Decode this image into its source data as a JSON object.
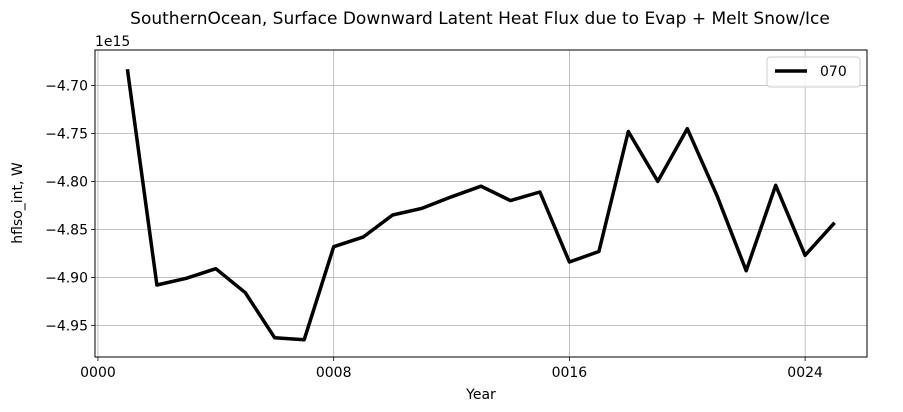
{
  "chart_data": {
    "type": "line",
    "title": "SouthernOcean, Surface Downward Latent Heat Flux due to Evap + Melt Snow/Ice",
    "xlabel": "Year",
    "ylabel": "hflso_int, W",
    "offset_label": "1e15",
    "y_multiplier": 1000000000000000.0,
    "xlim": [
      -0.1,
      26.1
    ],
    "ylim": [
      -4.983,
      -4.663
    ],
    "x_ticks": [
      0,
      8,
      16,
      24
    ],
    "x_tick_labels": [
      "0000",
      "0008",
      "0016",
      "0024"
    ],
    "y_ticks": [
      -4.7,
      -4.75,
      -4.8,
      -4.85,
      -4.9,
      -4.95
    ],
    "y_tick_labels": [
      "−4.70",
      "−4.75",
      "−4.80",
      "−4.85",
      "−4.90",
      "−4.95"
    ],
    "grid": true,
    "legend_position": "upper right",
    "series": [
      {
        "name": "070",
        "color": "#000000",
        "x": [
          1,
          2,
          3,
          4,
          5,
          6,
          7,
          8,
          9,
          10,
          11,
          12,
          13,
          14,
          15,
          16,
          17,
          18,
          19,
          20,
          21,
          22,
          23,
          24,
          25
        ],
        "y": [
          -4.683,
          -4.908,
          -4.901,
          -4.891,
          -4.916,
          -4.963,
          -4.965,
          -4.868,
          -4.858,
          -4.835,
          -4.828,
          -4.816,
          -4.805,
          -4.82,
          -4.811,
          -4.884,
          -4.873,
          -4.748,
          -4.8,
          -4.745,
          -4.814,
          -4.893,
          -4.804,
          -4.877,
          -4.843
        ]
      }
    ]
  }
}
